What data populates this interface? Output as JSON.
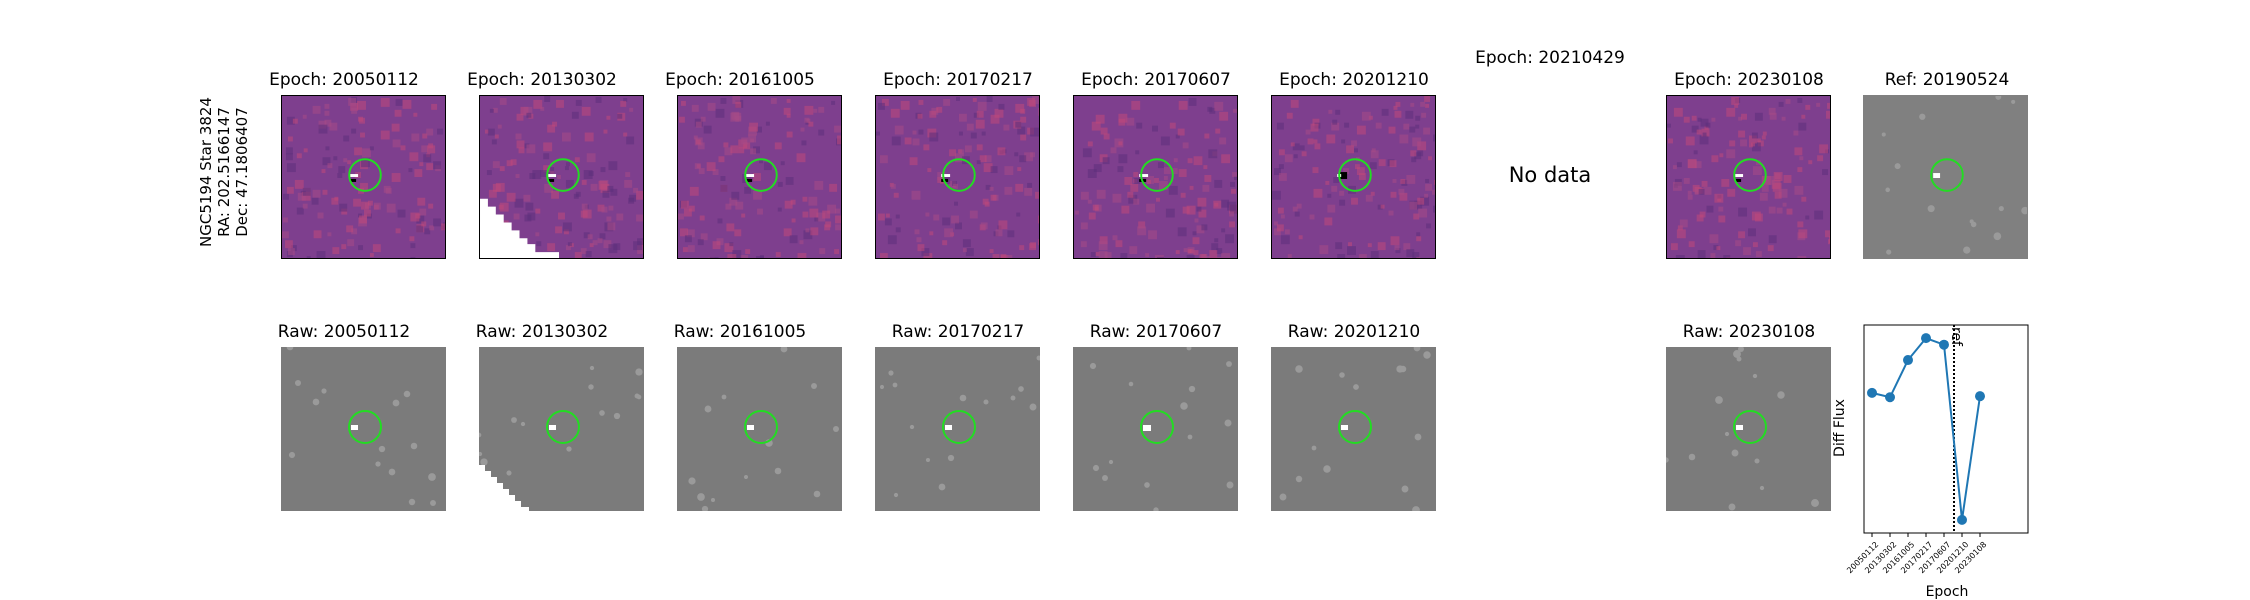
{
  "star_label": {
    "name": "NGC5194 Star 3824",
    "ra": "RA: 202.5166147",
    "dec": "Dec: 47.1806407"
  },
  "diff_panels": [
    {
      "title": "Epoch: 20050112"
    },
    {
      "title": "Epoch: 20130302"
    },
    {
      "title": "Epoch: 20161005"
    },
    {
      "title": "Epoch: 20170217"
    },
    {
      "title": "Epoch: 20170607"
    },
    {
      "title": "Epoch: 20201210"
    },
    {
      "title": "Epoch: 20210429",
      "no_data": "No data"
    },
    {
      "title": "Epoch: 20230108"
    }
  ],
  "ref_panel": {
    "title": "Ref: 20190524"
  },
  "raw_panels": [
    {
      "title": "Raw: 20050112"
    },
    {
      "title": "Raw: 20130302"
    },
    {
      "title": "Raw: 20161005"
    },
    {
      "title": "Raw: 20170217"
    },
    {
      "title": "Raw: 20170607"
    },
    {
      "title": "Raw: 20201210"
    },
    {
      "title": "Raw: 20230108"
    }
  ],
  "colors": {
    "diff_bg": "#7e3f8e",
    "raw_bg": "#7b7b7b",
    "circle": "#22dd22",
    "line": "#1f77b4"
  },
  "chart_data": {
    "type": "line",
    "title": "",
    "xlabel": "Epoch",
    "ylabel": "Diff Flux",
    "categories": [
      "20050112",
      "20130302",
      "20161005",
      "20170217",
      "20170607",
      "20201210",
      "20230108"
    ],
    "values": [
      0.38,
      0.34,
      0.68,
      0.88,
      0.82,
      -0.78,
      0.35
    ],
    "ylim": [
      -0.9,
      1.0
    ],
    "ref_line": {
      "label": "ref",
      "position_between": [
        "20170607",
        "20201210"
      ]
    },
    "grid": false
  }
}
